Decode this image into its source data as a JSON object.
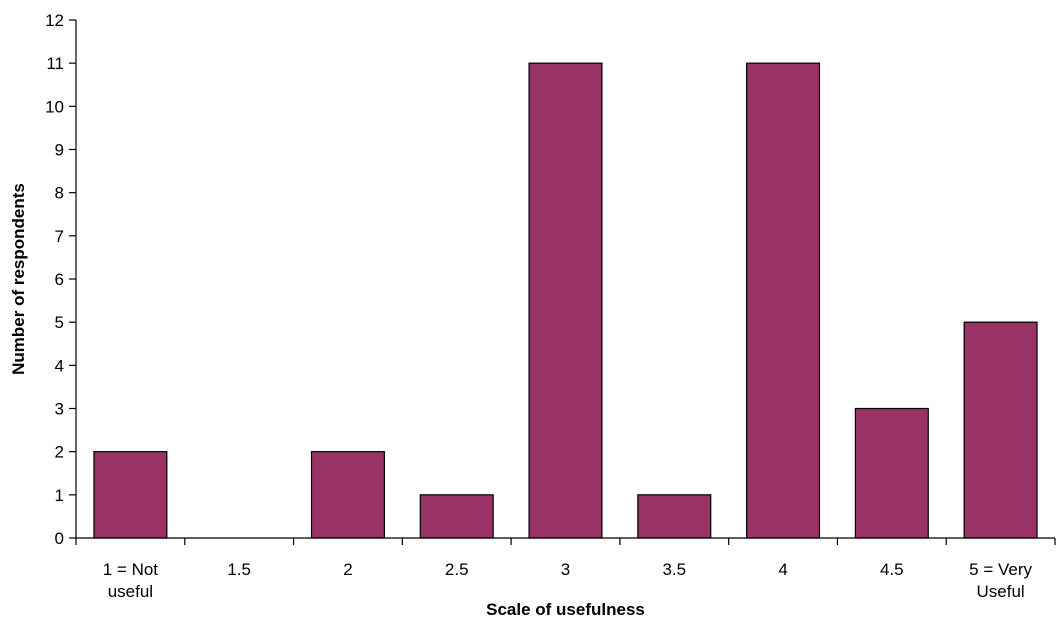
{
  "chart_data": {
    "type": "bar",
    "title": "",
    "xlabel": "Scale of usefulness",
    "ylabel": "Number of respondents",
    "categories": [
      [
        "1 = Not",
        "useful"
      ],
      [
        "1.5"
      ],
      [
        "2"
      ],
      [
        "2.5"
      ],
      [
        "3"
      ],
      [
        "3.5"
      ],
      [
        "4"
      ],
      [
        "4.5"
      ],
      [
        "5 = Very",
        "Useful"
      ]
    ],
    "values": [
      2,
      0,
      2,
      1,
      11,
      1,
      11,
      3,
      5
    ],
    "ylim": [
      0,
      12
    ],
    "yticks": [
      0,
      1,
      2,
      3,
      4,
      5,
      6,
      7,
      8,
      9,
      10,
      11,
      12
    ],
    "grid": false,
    "legend": "none",
    "bar_color": "#993366",
    "bar_edge_color": "#000000"
  }
}
